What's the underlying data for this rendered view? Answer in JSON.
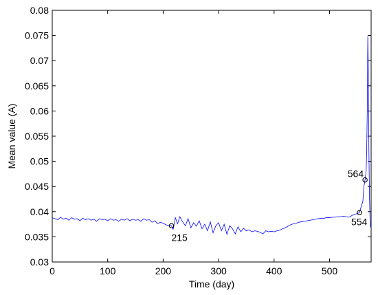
{
  "chart_data": {
    "type": "line",
    "title": "",
    "xlabel": "Time (day)",
    "ylabel": "Mean value (A)",
    "xlim": [
      0,
      575
    ],
    "ylim": [
      0.03,
      0.08
    ],
    "xticks": [
      "0",
      "100",
      "200",
      "300",
      "400",
      "500"
    ],
    "xtick_values": [
      0,
      100,
      200,
      300,
      400,
      500
    ],
    "yticks": [
      "0.03",
      "0.035",
      "0.04",
      "0.045",
      "0.05",
      "0.055",
      "0.06",
      "0.065",
      "0.07",
      "0.075",
      "0.08"
    ],
    "ytick_values": [
      0.03,
      0.035,
      0.04,
      0.045,
      0.05,
      0.055,
      0.06,
      0.065,
      0.07,
      0.075,
      0.08
    ],
    "grid": false,
    "series": [
      {
        "color": "#0000ff",
        "x": [
          0,
          5,
          10,
          15,
          20,
          25,
          30,
          35,
          40,
          45,
          50,
          55,
          60,
          65,
          70,
          75,
          80,
          85,
          90,
          95,
          100,
          105,
          110,
          115,
          120,
          125,
          130,
          135,
          140,
          145,
          150,
          155,
          160,
          165,
          170,
          175,
          180,
          185,
          190,
          195,
          200,
          205,
          210,
          215,
          218,
          222,
          226,
          230,
          235,
          240,
          245,
          250,
          255,
          260,
          265,
          270,
          275,
          280,
          285,
          290,
          295,
          300,
          305,
          310,
          315,
          320,
          325,
          330,
          335,
          340,
          345,
          350,
          355,
          360,
          365,
          370,
          375,
          380,
          385,
          390,
          395,
          400,
          405,
          410,
          415,
          420,
          425,
          430,
          435,
          440,
          445,
          450,
          455,
          460,
          465,
          470,
          475,
          480,
          485,
          490,
          495,
          500,
          505,
          510,
          515,
          520,
          525,
          530,
          535,
          540,
          545,
          550,
          554,
          557,
          560,
          562,
          564,
          566,
          567,
          568,
          569,
          570,
          571,
          572,
          573,
          574,
          575
        ],
        "y": [
          0.0388,
          0.0386,
          0.0384,
          0.0389,
          0.0385,
          0.0387,
          0.0383,
          0.0388,
          0.0385,
          0.0386,
          0.0382,
          0.0387,
          0.0384,
          0.0386,
          0.0383,
          0.0385,
          0.0381,
          0.0386,
          0.0384,
          0.0385,
          0.0382,
          0.0386,
          0.0383,
          0.0384,
          0.0381,
          0.0385,
          0.0383,
          0.0386,
          0.0382,
          0.0385,
          0.0383,
          0.0384,
          0.0381,
          0.0386,
          0.0383,
          0.0384,
          0.0379,
          0.0382,
          0.0376,
          0.0379,
          0.0377,
          0.0374,
          0.0372,
          0.0372,
          0.0365,
          0.0388,
          0.0376,
          0.039,
          0.038,
          0.0372,
          0.0386,
          0.0368,
          0.0378,
          0.0371,
          0.0382,
          0.0366,
          0.0375,
          0.0362,
          0.038,
          0.0358,
          0.0372,
          0.0378,
          0.0362,
          0.0375,
          0.0355,
          0.0372,
          0.0366,
          0.0356,
          0.037,
          0.036,
          0.0367,
          0.0362,
          0.0364,
          0.036,
          0.0362,
          0.0361,
          0.0359,
          0.0356,
          0.0362,
          0.036,
          0.0361,
          0.036,
          0.0362,
          0.0363,
          0.0366,
          0.0368,
          0.0371,
          0.0374,
          0.0376,
          0.0377,
          0.0379,
          0.038,
          0.0381,
          0.0382,
          0.0383,
          0.0384,
          0.0385,
          0.0386,
          0.0387,
          0.0387,
          0.0388,
          0.0388,
          0.0389,
          0.0389,
          0.039,
          0.039,
          0.0391,
          0.039,
          0.0389,
          0.0392,
          0.0395,
          0.0396,
          0.0398,
          0.041,
          0.042,
          0.045,
          0.0463,
          0.048,
          0.052,
          0.06,
          0.0748,
          0.068,
          0.052,
          0.043,
          0.0385,
          0.037,
          0.0368
        ]
      }
    ],
    "annotations": [
      {
        "label": "215",
        "x": 215,
        "y": 0.0372
      },
      {
        "label": "554",
        "x": 554,
        "y": 0.0398
      },
      {
        "label": "564",
        "x": 564,
        "y": 0.0463
      }
    ]
  }
}
